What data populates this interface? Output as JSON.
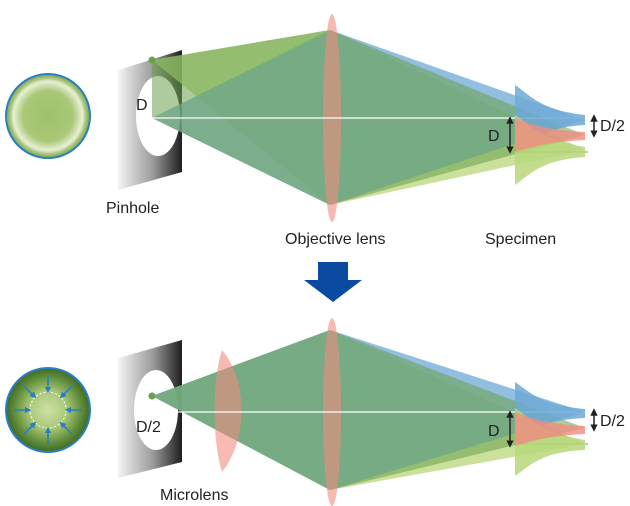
{
  "labels": {
    "pinhole": "Pinhole",
    "objective": "Objective lens",
    "specimen": "Specimen",
    "microlens": "Microlens",
    "d_top": "D",
    "d_top_spec": "D",
    "d_half_top": "D/2",
    "d_half_bottom": "D/2",
    "d_bottom_spec": "D",
    "d_half_bottom_spec": "D/2"
  },
  "colors": {
    "green_beam": "#b9d77a",
    "blue_beam": "#6ea9d6",
    "dark_green": "#6aa14a",
    "lens": "#f08c80",
    "arrow": "#0a4aa0",
    "plate_dark": "#222222",
    "plate_light": "#f2f2f2"
  }
}
